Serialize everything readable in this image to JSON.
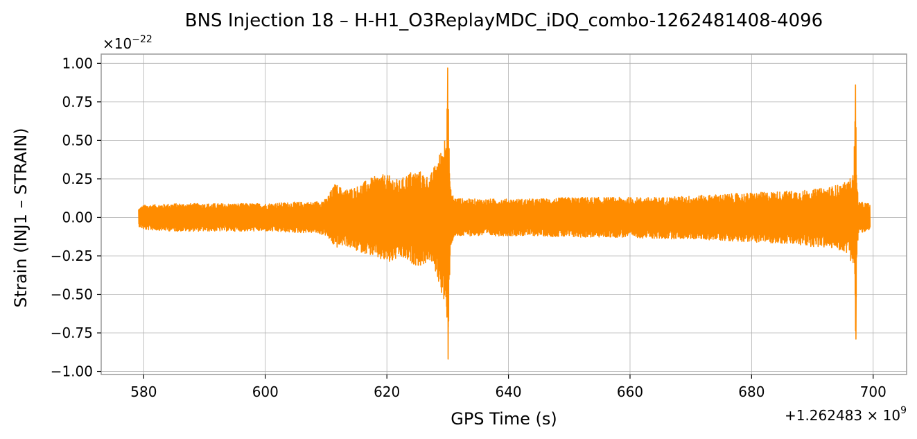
{
  "chart_data": {
    "type": "line",
    "title": "BNS Injection 18 – H-H1_O3ReplayMDC_iDQ_combo-1262481408-4096",
    "xlabel": "GPS Time (s)",
    "ylabel": "Strain (INJ1 – STRAIN)",
    "x_offset_label": "+1.262483 × 10",
    "x_offset_exponent": "9",
    "y_scale_label": "×10",
    "y_scale_exponent": "−22",
    "xlim": [
      573,
      705.5
    ],
    "ylim": [
      -1.02,
      1.06
    ],
    "xticks": [
      580,
      600,
      620,
      640,
      660,
      680,
      700
    ],
    "xtick_labels": [
      "580",
      "600",
      "620",
      "640",
      "660",
      "680",
      "700"
    ],
    "yticks": [
      1.0,
      0.75,
      0.5,
      0.25,
      0.0,
      -0.25,
      -0.5,
      -0.75,
      -1.0
    ],
    "ytick_labels": [
      "1.00",
      "0.75",
      "0.50",
      "0.25",
      "0.00",
      "−0.25",
      "−0.50",
      "−0.75",
      "−1.00"
    ],
    "grid": true,
    "series": [
      {
        "color": "#ff8c00",
        "x_range": [
          579.2,
          699.4
        ],
        "envelope": {
          "x": [
            579.2,
            580,
            585,
            590,
            595,
            600,
            605,
            608,
            610,
            611.5,
            613,
            615,
            617,
            619,
            620.5,
            622,
            624,
            625.5,
            627,
            628,
            629,
            629.6,
            630,
            630.4,
            631,
            633,
            636,
            640,
            645,
            650,
            655,
            660,
            665,
            670,
            675,
            680,
            685,
            690,
            693,
            695,
            696,
            696.8,
            697.1,
            697.3,
            697.6,
            698,
            699.4
          ],
          "upper": [
            0.06,
            0.08,
            0.09,
            0.09,
            0.09,
            0.09,
            0.1,
            0.1,
            0.12,
            0.22,
            0.18,
            0.2,
            0.25,
            0.28,
            0.27,
            0.24,
            0.3,
            0.3,
            0.26,
            0.35,
            0.45,
            0.55,
            0.97,
            0.2,
            0.13,
            0.12,
            0.12,
            0.12,
            0.12,
            0.13,
            0.13,
            0.13,
            0.13,
            0.14,
            0.15,
            0.16,
            0.17,
            0.18,
            0.2,
            0.22,
            0.24,
            0.3,
            0.86,
            0.25,
            0.1,
            0.1,
            0.09
          ],
          "lower": [
            -0.06,
            -0.08,
            -0.09,
            -0.09,
            -0.09,
            -0.09,
            -0.1,
            -0.1,
            -0.12,
            -0.2,
            -0.18,
            -0.22,
            -0.24,
            -0.28,
            -0.3,
            -0.26,
            -0.3,
            -0.32,
            -0.28,
            -0.36,
            -0.5,
            -0.6,
            -0.92,
            -0.2,
            -0.13,
            -0.12,
            -0.12,
            -0.12,
            -0.12,
            -0.13,
            -0.13,
            -0.13,
            -0.14,
            -0.14,
            -0.15,
            -0.16,
            -0.17,
            -0.19,
            -0.2,
            -0.22,
            -0.24,
            -0.36,
            -0.79,
            -0.25,
            -0.1,
            -0.1,
            -0.09
          ]
        }
      }
    ]
  }
}
